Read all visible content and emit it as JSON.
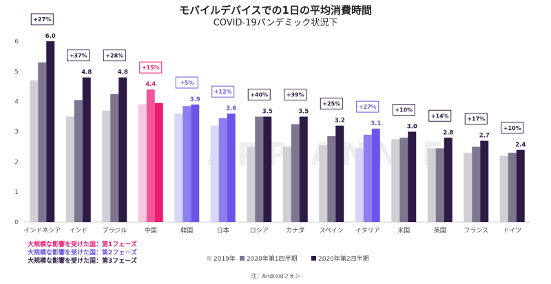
{
  "chart_data": {
    "type": "bar",
    "title": "モバイルデバイスでの1日の平均消費時間",
    "subtitle": "COVID-19パンデミック状況下",
    "categories": [
      "インドネシア",
      "インド",
      "ブラジル",
      "中国",
      "韓国",
      "日本",
      "ロシア",
      "カナダ",
      "スペイン",
      "イタリア",
      "米国",
      "英国",
      "フランス",
      "ドイツ"
    ],
    "series": [
      {
        "name": "2019年",
        "values": [
          4.7,
          3.5,
          3.7,
          3.9,
          3.6,
          3.2,
          2.5,
          2.5,
          2.55,
          2.45,
          2.75,
          2.45,
          2.3,
          2.2
        ]
      },
      {
        "name": "2020年第1四半期",
        "values": [
          5.3,
          4.05,
          4.25,
          4.4,
          3.85,
          3.45,
          3.5,
          3.25,
          2.85,
          2.9,
          2.8,
          2.45,
          2.5,
          2.3
        ]
      },
      {
        "name": "2020年第2四半期",
        "values": [
          6.0,
          4.8,
          4.8,
          3.95,
          3.9,
          3.6,
          3.5,
          3.5,
          3.2,
          3.1,
          3.0,
          2.8,
          2.7,
          2.4
        ]
      }
    ],
    "value_labels": [
      "6.0",
      "4.8",
      "4.8",
      "4.4",
      "3.9",
      "3.6",
      "3.5",
      "3.5",
      "3.2",
      "3.1",
      "3.0",
      "2.8",
      "2.7",
      "2.4"
    ],
    "value_label_series": [
      2,
      2,
      2,
      1,
      2,
      2,
      2,
      2,
      2,
      2,
      2,
      2,
      2,
      2
    ],
    "badges": [
      "+27%",
      "+37%",
      "+28%",
      "+15%",
      "+5%",
      "+12%",
      "+40%",
      "+39%",
      "+25%",
      "+27%",
      "+10%",
      "+14%",
      "+17%",
      "+10%"
    ],
    "phase": [
      3,
      3,
      3,
      1,
      2,
      2,
      3,
      3,
      3,
      2,
      3,
      3,
      3,
      3
    ],
    "ylim": [
      0,
      6
    ],
    "yticks": [
      0,
      1,
      2,
      3,
      4,
      5,
      6
    ],
    "grid": false,
    "legend_position": "bottom-center",
    "colors": {
      "phase1": [
        "#f5c8dc",
        "#f0559b",
        "#ee1c6f"
      ],
      "phase2": [
        "#d9d5f6",
        "#8c7ff0",
        "#6a55e8"
      ],
      "phase3": [
        "#d1cfd4",
        "#7e768f",
        "#2e1b45"
      ],
      "badge_phase1": "#ee1c6f",
      "badge_phase2": "#6a55e8",
      "badge_phase3": "#2e1b45"
    },
    "phase_notes": [
      {
        "text": "大規模な影響を受けた国：第1フェーズ",
        "color": "#ee1c6f"
      },
      {
        "text": "大規模な影響を受けた国：第2フェーズ",
        "color": "#6a55e8"
      },
      {
        "text": "大規模な影響を受けた国：第3フェーズ",
        "color": "#2e1b45"
      }
    ],
    "footnote": "注：Androidフォン",
    "watermark": "APP ANNIE"
  }
}
